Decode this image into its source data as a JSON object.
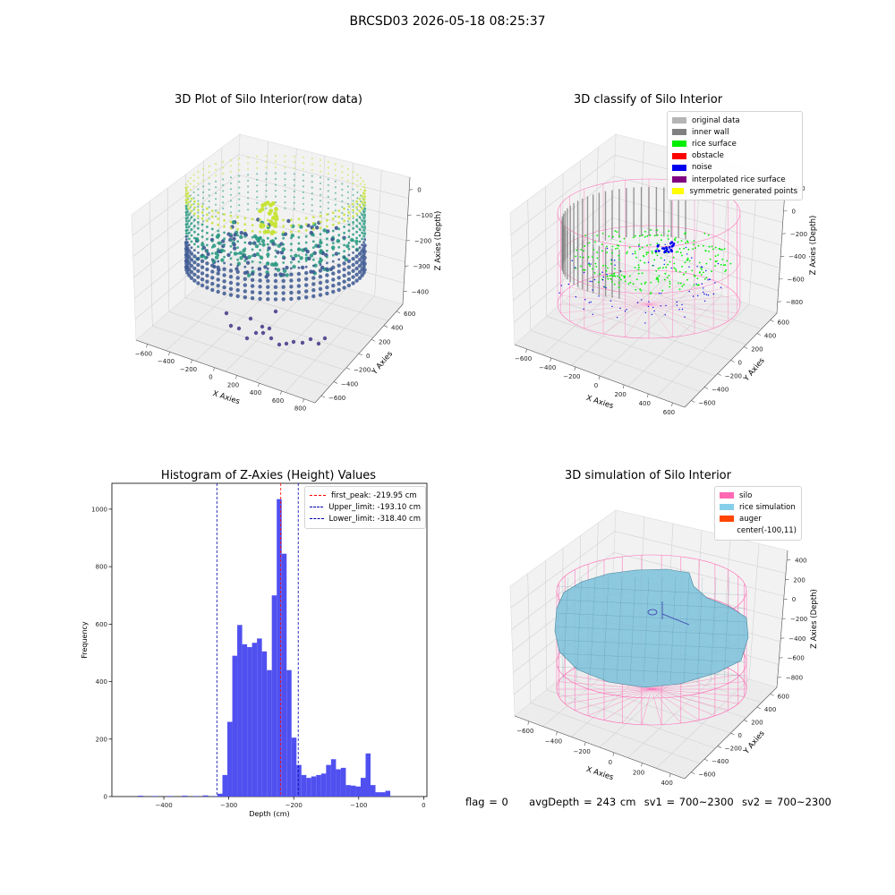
{
  "suptitle": "BRCSD03 2026-05-18 08:25:37",
  "status": {
    "flag": "flag = 0",
    "avg_depth": "avgDepth = 243 cm",
    "sv1": "sv1 = 700~2300",
    "sv2": "sv2 = 700~2300"
  },
  "chart_data": [
    {
      "type": "scatter",
      "title": "3D Plot of Silo Interior(row data)",
      "xlabel": "X Axies",
      "ylabel": "Y Axies",
      "zlabel": "Z Axies (Depth)",
      "xticks": [
        "−600",
        "−400",
        "−200",
        "0",
        "200",
        "400",
        "600",
        "800"
      ],
      "yticks": [
        "600",
        "400",
        "200",
        "0",
        "−200",
        "−400",
        "−600"
      ],
      "zticks": [
        "0",
        "−100",
        "−200",
        "−300",
        "−400"
      ],
      "xlim": [
        -600,
        800
      ],
      "ylim": [
        -600,
        600
      ],
      "zlim": [
        -450,
        0
      ],
      "colormap": "viridis",
      "colors": {
        "top": "#c8e33a",
        "mid": "#2a9a82",
        "low": "#3b5790",
        "stray": "#5b4e94"
      }
    },
    {
      "type": "scatter",
      "title": "3D classify of Silo Interior",
      "xlabel": "X Axies",
      "ylabel": "Y Axies",
      "zlabel": "Z Axies (Depth)",
      "xticks": [
        "−600",
        "−400",
        "−200",
        "0",
        "200",
        "400",
        "600"
      ],
      "yticks": [
        "600",
        "400",
        "200",
        "0",
        "−200",
        "−400",
        "−600"
      ],
      "zticks": [
        "200",
        "0",
        "−200",
        "−400",
        "−600",
        "−800"
      ],
      "xlim": [
        -700,
        650
      ],
      "ylim": [
        -650,
        650
      ],
      "zlim": [
        -900,
        250
      ],
      "legend": [
        {
          "label": "original data",
          "color": "#b5b5b5"
        },
        {
          "label": "inner wall",
          "color": "#808080"
        },
        {
          "label": "rice surface",
          "color": "#00ee00"
        },
        {
          "label": "obstacle",
          "color": "#ff0000"
        },
        {
          "label": "noise",
          "color": "#0000ee"
        },
        {
          "label": "interpolated rice surface",
          "color": "#800080"
        },
        {
          "label": "symmetric generated points",
          "color": "#ffff00"
        }
      ],
      "colors": {
        "silo": "#ff77bb"
      }
    },
    {
      "type": "bar",
      "title": "Histogram of Z-Axies (Height) Values",
      "xlabel": "Depth (cm)",
      "ylabel": "Frequency",
      "xlim": [
        -480,
        5
      ],
      "ylim": [
        0,
        1090
      ],
      "xticks": [
        -400,
        -300,
        -200,
        -100,
        0
      ],
      "yticks": [
        0,
        200,
        400,
        600,
        800,
        1000
      ],
      "bin_start": -325,
      "bin_width": 7.6,
      "values": [
        2,
        10,
        75,
        260,
        490,
        597,
        530,
        520,
        535,
        550,
        505,
        440,
        700,
        1035,
        845,
        440,
        205,
        110,
        75,
        65,
        70,
        75,
        80,
        110,
        130,
        95,
        100,
        40,
        38,
        35,
        65,
        150,
        40,
        15,
        15,
        20
      ],
      "stray": [
        {
          "x": -440,
          "v": 3
        },
        {
          "x": -418,
          "v": 2
        },
        {
          "x": -395,
          "v": 2
        },
        {
          "x": -372,
          "v": 3
        },
        {
          "x": -355,
          "v": 2
        },
        {
          "x": -340,
          "v": 4
        }
      ],
      "lines": [
        {
          "label": "first_peak: -219.95 cm",
          "x": -219.95,
          "color": "#ff0000"
        },
        {
          "label": "Upper_limit: -193.10 cm",
          "x": -193.1,
          "color": "#0000aa"
        },
        {
          "label": "Lower_limit: -318.40 cm",
          "x": -318.4,
          "color": "#0000aa"
        }
      ],
      "bar_color": "#5050f0"
    },
    {
      "type": "area",
      "title": "3D simulation of Silo Interior",
      "xlabel": "X Axies",
      "ylabel": "Y Axies",
      "zlabel": "Z Axies (Depth)",
      "xticks": [
        "−600",
        "−400",
        "−200",
        "0",
        "200",
        "400"
      ],
      "yticks": [
        "600",
        "400",
        "200",
        "0",
        "−200",
        "−400",
        "−600"
      ],
      "zticks": [
        "400",
        "200",
        "0",
        "−200",
        "−400",
        "−600",
        "−800"
      ],
      "xlim": [
        -700,
        500
      ],
      "ylim": [
        -650,
        650
      ],
      "zlim": [
        -900,
        450
      ],
      "legend": [
        {
          "label": "silo",
          "color": "#ff69b4"
        },
        {
          "label": "rice simulation",
          "color": "#87ceeb"
        },
        {
          "label": "auger",
          "color": "#ff4500"
        },
        {
          "label": "center(-100,11)",
          "color": ""
        }
      ],
      "colors": {
        "silo": "#ff69b4",
        "rice": "#87c6dd",
        "mesh": "#3d7f96",
        "auger": "#3a3fae"
      }
    }
  ]
}
